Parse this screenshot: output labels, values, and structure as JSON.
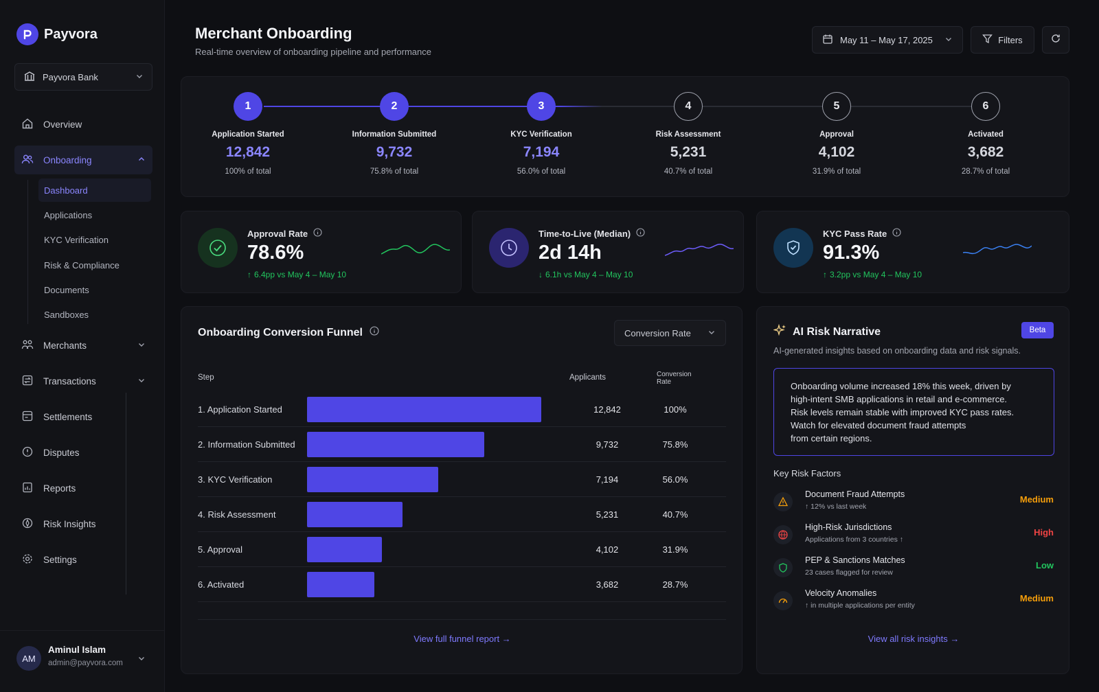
{
  "brand": {
    "name": "Payvora"
  },
  "bank_select": {
    "value": "Payvora Bank"
  },
  "nav": {
    "overview": "Overview",
    "onboarding": "Onboarding",
    "sub": [
      "Dashboard",
      "Applications",
      "KYC Verification",
      "Risk & Compliance",
      "Documents",
      "Sandboxes"
    ],
    "merchants": "Merchants",
    "transactions": "Transactions",
    "settlements": "Settlements",
    "disputes": "Disputes",
    "reports": "Reports",
    "risk_insights": "Risk Insights",
    "settings": "Settings"
  },
  "user": {
    "initials": "AM",
    "name": "Aminul Islam",
    "email": "admin@payvora.com"
  },
  "header": {
    "title": "Merchant Onboarding",
    "subtitle": "Real-time overview of onboarding pipeline and performance",
    "date_range": "May 11 – May 17, 2025",
    "filters_label": "Filters"
  },
  "steps": [
    {
      "num": "1",
      "name": "Application Started",
      "value": "12,842",
      "pct": "100% of total"
    },
    {
      "num": "2",
      "name": "Information Submitted",
      "value": "9,732",
      "pct": "75.8% of total"
    },
    {
      "num": "3",
      "name": "KYC Verification",
      "value": "7,194",
      "pct": "56.0% of total"
    },
    {
      "num": "4",
      "name": "Risk Assessment",
      "value": "5,231",
      "pct": "40.7% of total"
    },
    {
      "num": "5",
      "name": "Approval",
      "value": "4,102",
      "pct": "31.9% of total"
    },
    {
      "num": "6",
      "name": "Activated",
      "value": "3,682",
      "pct": "28.7% of total"
    }
  ],
  "kpis": {
    "approval": {
      "label": "Approval Rate",
      "value": "78.6%",
      "delta": "6.4pp vs May 4 – May 10"
    },
    "ttl": {
      "label": "Time-to-Live (Median)",
      "value": "2d 14h",
      "delta": "6.1h vs May 4 – May 10"
    },
    "kyc": {
      "label": "KYC Pass Rate",
      "value": "91.3%",
      "delta": "3.2pp vs May 4 – May 10"
    }
  },
  "funnel": {
    "title": "Onboarding Conversion Funnel",
    "metric_select": "Conversion Rate",
    "col_step": "Step",
    "col_applicants": "Applicants",
    "col_rate_1": "Conversion",
    "col_rate_2": "Rate",
    "rows": [
      {
        "label": "1. Application Started",
        "applicants": "12,842",
        "rate": "100%",
        "share": 1.0
      },
      {
        "label": "2. Information Submitted",
        "applicants": "9,732",
        "rate": "75.8%",
        "share": 0.758
      },
      {
        "label": "3. KYC Verification",
        "applicants": "7,194",
        "rate": "56.0%",
        "share": 0.56
      },
      {
        "label": "4. Risk Assessment",
        "applicants": "5,231",
        "rate": "40.7%",
        "share": 0.407
      },
      {
        "label": "5. Approval",
        "applicants": "4,102",
        "rate": "31.9%",
        "share": 0.319
      },
      {
        "label": "6. Activated",
        "applicants": "3,682",
        "rate": "28.7%",
        "share": 0.287
      }
    ],
    "link": "View full funnel report →"
  },
  "risk": {
    "title": "AI Risk Narrative",
    "badge": "Beta",
    "subtitle": "AI-generated insights based on onboarding data and risk signals.",
    "narrative": [
      "Onboarding volume increased 18% this week, driven by",
      "high-intent SMB applications in retail and e-commerce.",
      "Risk levels remain stable with improved KYC pass rates.",
      "Watch for elevated document fraud attempts",
      "from certain regions."
    ],
    "factors_title": "Key Risk Factors",
    "factors": [
      {
        "name": "Document Fraud Attempts",
        "desc": "↑ 12% vs last week",
        "level": "Medium"
      },
      {
        "name": "High-Risk Jurisdictions",
        "desc": "Applications from 3 countries ↑",
        "level": "High"
      },
      {
        "name": "PEP & Sanctions Matches",
        "desc": "23 cases flagged for review",
        "level": "Low"
      },
      {
        "name": "Velocity Anomalies",
        "desc": "↑ in multiple applications per entity",
        "level": "Medium"
      }
    ],
    "link": "View all risk insights →"
  },
  "colors": {
    "accent": "#4f46e5",
    "green": "#22c55e",
    "red": "#ef4444",
    "amber": "#f59e0b",
    "blue": "#3b82f6"
  }
}
